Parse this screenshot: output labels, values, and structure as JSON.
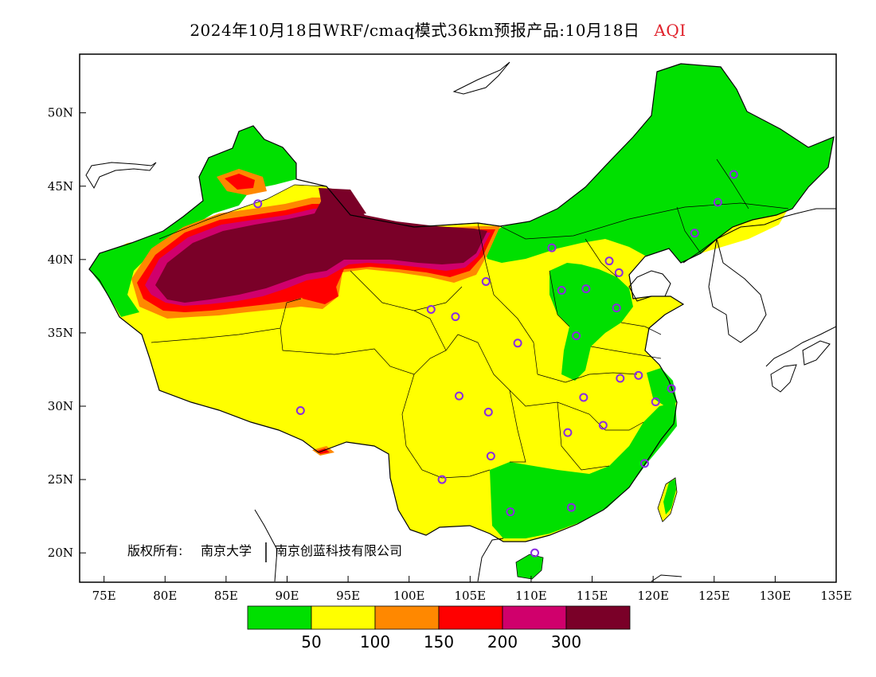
{
  "title": {
    "main": "2024年10月18日WRF/cmaq模式36km预报产品:10月18日",
    "variable": "AQI",
    "variable_color": "#e0202a"
  },
  "credit": {
    "prefix": "版权所有:",
    "org1": "南京大学",
    "org2": "南京创蓝科技有限公司"
  },
  "map": {
    "lon_range": [
      73,
      135
    ],
    "lat_range": [
      18,
      54
    ],
    "lon_ticks": [
      {
        "lon": 75,
        "label": "75E"
      },
      {
        "lon": 80,
        "label": "80E"
      },
      {
        "lon": 85,
        "label": "85E"
      },
      {
        "lon": 90,
        "label": "90E"
      },
      {
        "lon": 95,
        "label": "95E"
      },
      {
        "lon": 100,
        "label": "100E"
      },
      {
        "lon": 105,
        "label": "105E"
      },
      {
        "lon": 110,
        "label": "110E"
      },
      {
        "lon": 115,
        "label": "115E"
      },
      {
        "lon": 120,
        "label": "120E"
      },
      {
        "lon": 125,
        "label": "125E"
      },
      {
        "lon": 130,
        "label": "130E"
      },
      {
        "lon": 135,
        "label": "135E"
      }
    ],
    "lat_ticks": [
      {
        "lat": 20,
        "label": "20N"
      },
      {
        "lat": 25,
        "label": "25N"
      },
      {
        "lat": 30,
        "label": "30N"
      },
      {
        "lat": 35,
        "label": "35N"
      },
      {
        "lat": 40,
        "label": "40N"
      },
      {
        "lat": 45,
        "label": "45N"
      },
      {
        "lat": 50,
        "label": "50N"
      }
    ],
    "colors": {
      "good": "#00e000",
      "moderate": "#ffff00",
      "unhealthy_sensitive": "#ff8800",
      "unhealthy": "#ff0000",
      "very_unhealthy": "#d0006c",
      "hazardous": "#7a0028",
      "station_marker": "#8a2be2"
    },
    "stations": [
      {
        "lon": 87.6,
        "lat": 43.8
      },
      {
        "lon": 91.1,
        "lat": 29.7
      },
      {
        "lon": 101.8,
        "lat": 36.6
      },
      {
        "lon": 103.8,
        "lat": 36.1
      },
      {
        "lon": 106.3,
        "lat": 38.5
      },
      {
        "lon": 111.7,
        "lat": 40.8
      },
      {
        "lon": 116.4,
        "lat": 39.9
      },
      {
        "lon": 117.2,
        "lat": 39.1
      },
      {
        "lon": 114.5,
        "lat": 38.0
      },
      {
        "lon": 112.5,
        "lat": 37.9
      },
      {
        "lon": 117.0,
        "lat": 36.7
      },
      {
        "lon": 113.7,
        "lat": 34.8
      },
      {
        "lon": 108.9,
        "lat": 34.3
      },
      {
        "lon": 104.1,
        "lat": 30.7
      },
      {
        "lon": 106.5,
        "lat": 29.6
      },
      {
        "lon": 114.3,
        "lat": 30.6
      },
      {
        "lon": 117.3,
        "lat": 31.9
      },
      {
        "lon": 118.8,
        "lat": 32.1
      },
      {
        "lon": 121.5,
        "lat": 31.2
      },
      {
        "lon": 120.2,
        "lat": 30.3
      },
      {
        "lon": 115.9,
        "lat": 28.7
      },
      {
        "lon": 113.0,
        "lat": 28.2
      },
      {
        "lon": 119.3,
        "lat": 26.1
      },
      {
        "lon": 106.7,
        "lat": 26.6
      },
      {
        "lon": 102.7,
        "lat": 25.0
      },
      {
        "lon": 108.3,
        "lat": 22.8
      },
      {
        "lon": 113.3,
        "lat": 23.1
      },
      {
        "lon": 110.3,
        "lat": 20.0
      },
      {
        "lon": 123.4,
        "lat": 41.8
      },
      {
        "lon": 125.3,
        "lat": 43.9
      },
      {
        "lon": 126.6,
        "lat": 45.8
      }
    ]
  },
  "legend": {
    "colors": [
      "#00e000",
      "#ffff00",
      "#ff8800",
      "#ff0000",
      "#d0006c",
      "#7a0028"
    ],
    "labels": [
      "50",
      "100",
      "150",
      "200",
      "300"
    ]
  }
}
